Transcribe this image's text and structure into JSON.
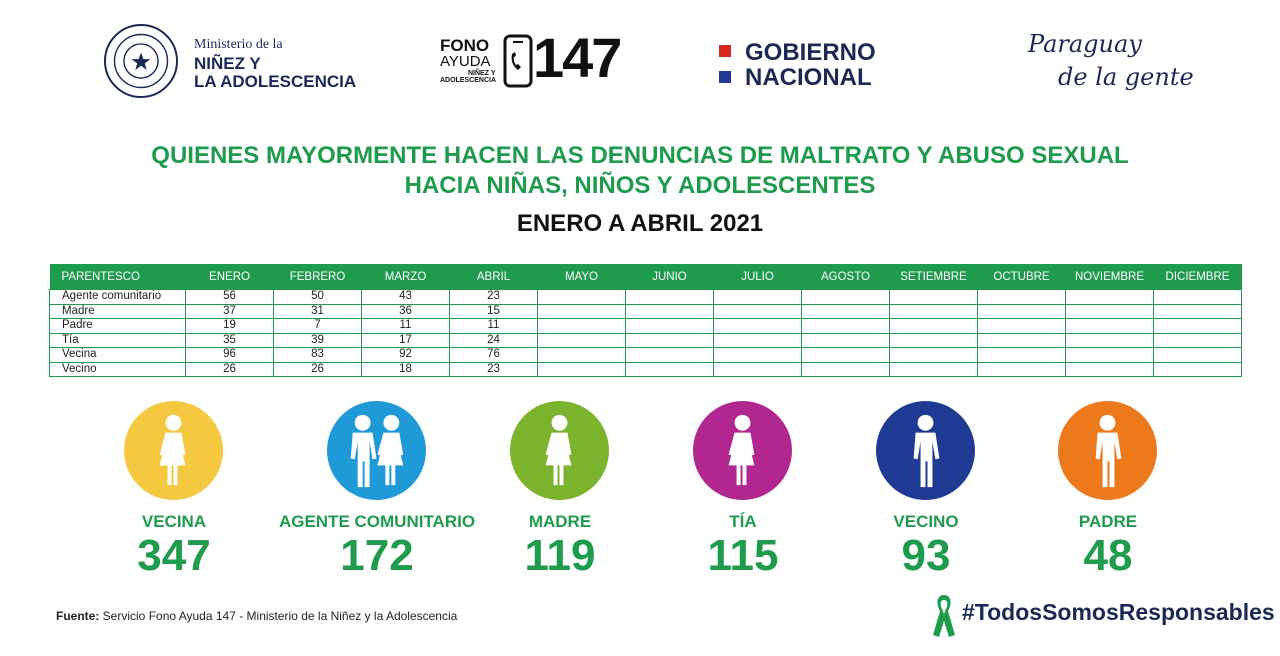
{
  "header": {
    "ministry_small": "Ministerio de la",
    "ministry_big_1": "NIÑEZ Y",
    "ministry_big_2": "LA ADOLESCENCIA",
    "fono_1": "FONO",
    "fono_2": "AYUDA",
    "fono_3": "NIÑEZ Y",
    "fono_4": "ADOLESCENCIA",
    "fono_number": "147",
    "gobierno_1": "GOBIERNO",
    "gobierno_2": "NACIONAL",
    "paraguay_1": "Paraguay",
    "paraguay_2": "de la gente",
    "seal_icon": "paraguay-seal-icon",
    "flag_colors": {
      "red": "#d52b1e",
      "blue": "#1f3a93"
    }
  },
  "title_line1": "QUIENES MAYORMENTE HACEN LAS DENUNCIAS DE MALTRATO Y ABUSO SEXUAL",
  "title_line2": "HACIA NIÑAS, NIÑOS Y ADOLESCENTES",
  "subtitle": "ENERO A ABRIL 2021",
  "table": {
    "headers": [
      "PARENTESCO",
      "ENERO",
      "FEBRERO",
      "MARZO",
      "ABRIL",
      "MAYO",
      "JUNIO",
      "JULIO",
      "AGOSTO",
      "SETIEMBRE",
      "OCTUBRE",
      "NOVIEMBRE",
      "DICIEMBRE"
    ],
    "rows": [
      [
        "Agente comunitario",
        "56",
        "50",
        "43",
        "23",
        "",
        "",
        "",
        "",
        "",
        "",
        "",
        ""
      ],
      [
        "Madre",
        "37",
        "31",
        "36",
        "15",
        "",
        "",
        "",
        "",
        "",
        "",
        "",
        ""
      ],
      [
        "Padre",
        "19",
        "7",
        "11",
        "11",
        "",
        "",
        "",
        "",
        "",
        "",
        "",
        ""
      ],
      [
        "Tía",
        "35",
        "39",
        "17",
        "24",
        "",
        "",
        "",
        "",
        "",
        "",
        "",
        ""
      ],
      [
        "Vecina",
        "96",
        "83",
        "92",
        "76",
        "",
        "",
        "",
        "",
        "",
        "",
        "",
        ""
      ],
      [
        "Vecino",
        "26",
        "26",
        "18",
        "23",
        "",
        "",
        "",
        "",
        "",
        "",
        "",
        ""
      ]
    ]
  },
  "totals": [
    {
      "label": "VECINA",
      "value": "347",
      "color": "#f5c842",
      "icon": "female-icon"
    },
    {
      "label": "AGENTE COMUNITARIO",
      "value": "172",
      "color": "#1f9ad6",
      "icon": "male-female-icon"
    },
    {
      "label": "MADRE",
      "value": "119",
      "color": "#7cb32e",
      "icon": "female-icon"
    },
    {
      "label": "TÍA",
      "value": "115",
      "color": "#b1278f",
      "icon": "female-icon"
    },
    {
      "label": "VECINO",
      "value": "93",
      "color": "#1f3a93",
      "icon": "male-icon"
    },
    {
      "label": "PADRE",
      "value": "48",
      "color": "#ec7a1d",
      "icon": "male-icon"
    }
  ],
  "footer": {
    "source_label": "Fuente:",
    "source_text": " Servicio Fono Ayuda 147 - Ministerio de la Niñez y la Adolescencia",
    "hashtag": "#TodosSomosResponsables",
    "ribbon_icon": "green-ribbon-icon"
  },
  "accent_color": "#1f9b4e"
}
